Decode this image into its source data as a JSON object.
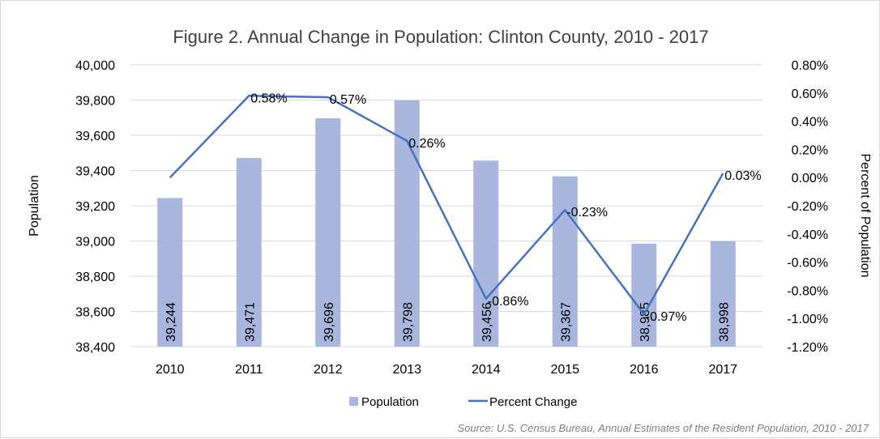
{
  "chart_data": {
    "type": "bar",
    "title": "Figure 2. Annual Change in Population: Clinton County, 2010 - 2017",
    "categories": [
      "2010",
      "2011",
      "2012",
      "2013",
      "2014",
      "2015",
      "2016",
      "2017"
    ],
    "series": [
      {
        "name": "Population",
        "type": "bar",
        "axis": "left",
        "color": "#a9b6de",
        "values": [
          39244,
          39471,
          39696,
          39798,
          39456,
          39367,
          38985,
          38998
        ],
        "labels": [
          "39,244",
          "39,471",
          "39,696",
          "39,798",
          "39,456",
          "39,367",
          "38,985",
          "38,998"
        ]
      },
      {
        "name": "Percent Change",
        "type": "line",
        "axis": "right",
        "color": "#4472c4",
        "values": [
          0.0,
          0.58,
          0.57,
          0.26,
          -0.86,
          -0.23,
          -0.97,
          0.03
        ],
        "labels": [
          "",
          "0.58%",
          "0.57%",
          "0.26%",
          "-0.86%",
          "-0.23%",
          "-0.97%",
          "0.03%"
        ]
      }
    ],
    "ylabel": "Population",
    "ylim": [
      38400,
      40000
    ],
    "yticks": [
      "40,000",
      "39,800",
      "39,600",
      "39,400",
      "39,200",
      "39,000",
      "38,800",
      "38,600",
      "38,400"
    ],
    "y2label": "Percent of Population",
    "y2lim": [
      -1.2,
      0.8
    ],
    "y2ticks": [
      "0.80%",
      "0.60%",
      "0.40%",
      "0.20%",
      "0.00%",
      "-0.20%",
      "-0.40%",
      "-0.60%",
      "-0.80%",
      "-1.00%",
      "-1.20%"
    ],
    "grid": true,
    "legend_position": "bottom",
    "source": "Source: U.S. Census Bureau, Annual Estimates of the Resident Population, 2010 - 2017"
  }
}
